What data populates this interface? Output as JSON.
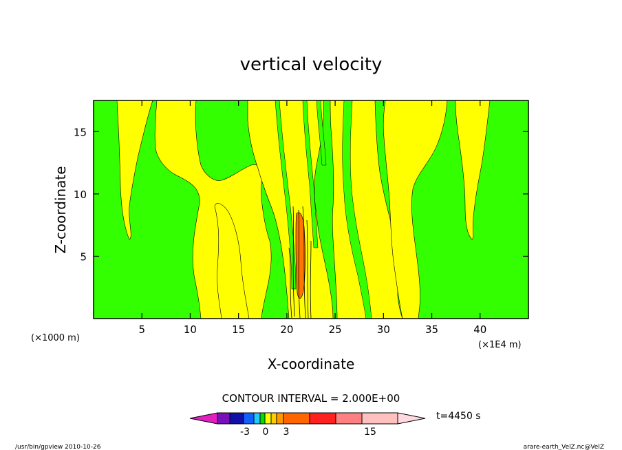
{
  "chart_data": {
    "type": "heatmap",
    "title": "vertical velocity",
    "xlabel": "X-coordinate",
    "ylabel": "Z-coordinate",
    "x_unit_left": "(×1000 m)",
    "x_unit_right": "(×1E4 m)",
    "xlim": [
      0,
      45
    ],
    "ylim": [
      0,
      17.5
    ],
    "x_ticks": [
      5,
      10,
      15,
      20,
      25,
      30,
      35,
      40
    ],
    "y_ticks": [
      5,
      10,
      15
    ],
    "contour_interval_text": "CONTOUR INTERVAL = 2.000E+00",
    "time_text": "t=4450 s",
    "colorbar": {
      "tick_labels": [
        "-3",
        "0",
        "3",
        "15"
      ],
      "colors": [
        "#e020c0",
        "#7a10b8",
        "#1010a8",
        "#1060ff",
        "#20c8ff",
        "#00e000",
        "#ffff00",
        "#ffcc00",
        "#ff9900",
        "#ff6600",
        "#ff2020",
        "#ff8080",
        "#ffc0c0",
        "#ffd8e0"
      ]
    },
    "colors": {
      "green": "#33ff00",
      "yellow": "#ffff00",
      "orange": "#ff7700",
      "outline": "#000000"
    }
  },
  "footer": {
    "left": "/usr/bin/gpview   2010-10-26",
    "right": "arare-earth_VelZ.nc@VelZ"
  }
}
